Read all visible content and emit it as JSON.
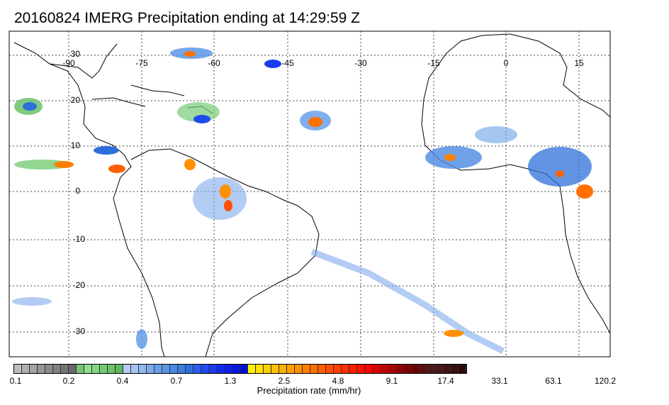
{
  "title": "20160824 IMERG Precipitation ending at 14:29:59 Z",
  "map": {
    "lon_ticks": [
      "-90",
      "-75",
      "-60",
      "-45",
      "-30",
      "-15",
      "0",
      "15"
    ],
    "lat_ticks": [
      "30",
      "20",
      "10",
      "0",
      "-10",
      "-20",
      "-30"
    ]
  },
  "colorbar": {
    "tick_labels": [
      "0.1",
      "0.2",
      "0.4",
      "0.7",
      "1.3",
      "2.5",
      "4.8",
      "9.1",
      "17.4",
      "33.1",
      "63.1",
      "120.2"
    ],
    "label": "Precipitation rate (mm/hr)",
    "colors": [
      "#bdbdbd",
      "#b0b0b0",
      "#a4a4a4",
      "#989898",
      "#8c8c8c",
      "#808080",
      "#747474",
      "#686868",
      "#78c47a",
      "#8ee08e",
      "#82d682",
      "#76cc76",
      "#6ac26a",
      "#5fb85f",
      "#b8c8f8",
      "#a8c4f0",
      "#92b8ee",
      "#7eaaec",
      "#6aa0ea",
      "#5a96e6",
      "#4a8ae2",
      "#3c7ede",
      "#2e70da",
      "#2c5ef0",
      "#1f4cf0",
      "#1a3cf0",
      "#122cf0",
      "#0c1ef0",
      "#0818e4",
      "#0410d8",
      "#fff200",
      "#ffe000",
      "#ffd000",
      "#ffc000",
      "#ffb000",
      "#ffa000",
      "#ff9000",
      "#ff8000",
      "#ff7000",
      "#ff6000",
      "#ff5000",
      "#ff4000",
      "#ff3000",
      "#ff2000",
      "#ff1000",
      "#ff0000",
      "#e00000",
      "#c80000",
      "#b00000",
      "#980000",
      "#800000",
      "#6c0000",
      "#5a1010",
      "#501818",
      "#481818",
      "#401414",
      "#381010",
      "#300808"
    ]
  }
}
